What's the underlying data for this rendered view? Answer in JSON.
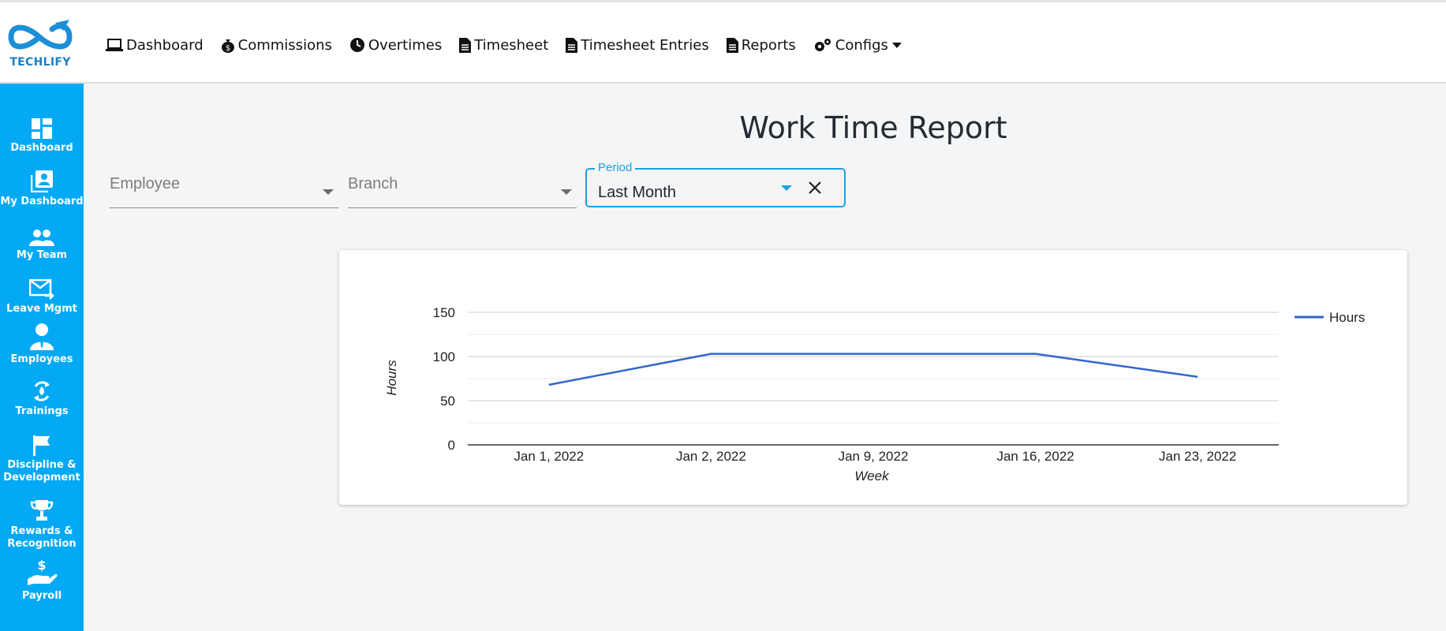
{
  "brand": {
    "name": "TECHLIFY"
  },
  "nav": {
    "items": [
      {
        "label": "Dashboard",
        "icon": "laptop-icon"
      },
      {
        "label": "Commissions",
        "icon": "money-bag-icon"
      },
      {
        "label": "Overtimes",
        "icon": "clock-icon"
      },
      {
        "label": "Timesheet",
        "icon": "file-icon"
      },
      {
        "label": "Timesheet Entries",
        "icon": "file-icon"
      },
      {
        "label": "Reports",
        "icon": "file-icon"
      },
      {
        "label": "Configs",
        "icon": "gears-icon"
      }
    ]
  },
  "sidebar": {
    "items": [
      {
        "label": "Dashboard",
        "icon": "dashboard-icon"
      },
      {
        "label": "My Dashboard",
        "icon": "portrait-icon"
      },
      {
        "label": "My Team",
        "icon": "people-icon"
      },
      {
        "label": "Leave Mgmt",
        "icon": "mail-arrow-icon"
      },
      {
        "label": "Employees",
        "icon": "employee-icon"
      },
      {
        "label": "Trainings",
        "icon": "training-icon"
      },
      {
        "label": "Discipline &",
        "label2": "Development",
        "icon": "flag-icon"
      },
      {
        "label": "Rewards &",
        "label2": "Recognition",
        "icon": "trophy-icon"
      },
      {
        "label": "Payroll",
        "icon": "payroll-icon"
      }
    ]
  },
  "page": {
    "title": "Work Time Report"
  },
  "filters": {
    "employee_placeholder": "Employee",
    "branch_placeholder": "Branch",
    "period_label": "Period",
    "period_value": "Last Month"
  },
  "colors": {
    "accent": "#03a9f4",
    "line": "#3366cc"
  },
  "chart_data": {
    "type": "line",
    "categories": [
      "Jan 1, 2022",
      "Jan 2, 2022",
      "Jan 9, 2022",
      "Jan 16, 2022",
      "Jan 23, 2022"
    ],
    "series": [
      {
        "name": "Hours",
        "values": [
          68,
          103,
          103,
          103,
          77
        ]
      }
    ],
    "xlabel": "Week",
    "ylabel": "Hours",
    "ylim": [
      0,
      150
    ],
    "yticks": [
      0,
      50,
      100,
      150
    ],
    "grid": true,
    "legend": "right"
  }
}
